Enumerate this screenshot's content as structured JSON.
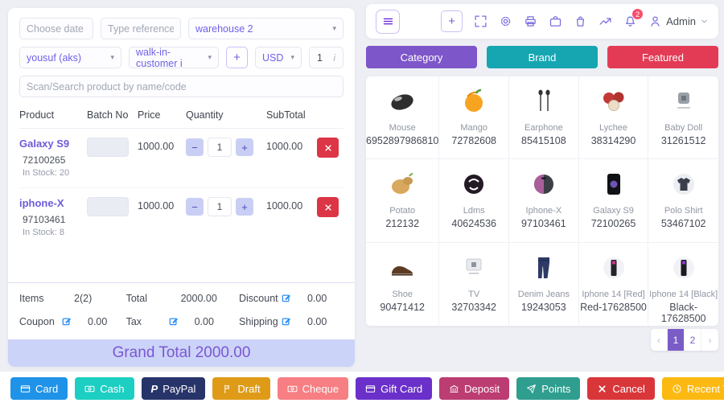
{
  "pos": {
    "date_placeholder": "Choose date",
    "reference_placeholder": "Type reference nu",
    "warehouse": "warehouse 2",
    "biller": "yousuf (aks)",
    "customer": "walk-in-customer i",
    "add_customer_label": "+",
    "currency": "USD",
    "exchange_rate": "1",
    "search_placeholder": "Scan/Search product by name/code",
    "table_headers": [
      "Product",
      "Batch No",
      "Price",
      "Quantity",
      "SubTotal"
    ],
    "cart": [
      {
        "name": "Galaxy S9",
        "code": "72100265",
        "stock": "In Stock: 20",
        "price": "1000.00",
        "qty": "1",
        "subtotal": "1000.00"
      },
      {
        "name": "iphone-X",
        "code": "97103461",
        "stock": "In Stock: 8",
        "price": "1000.00",
        "qty": "1",
        "subtotal": "1000.00"
      }
    ],
    "summary": [
      [
        {
          "label": "Items",
          "value": "2(2)",
          "editable": false
        },
        {
          "label": "Total",
          "value": "2000.00",
          "editable": false
        },
        {
          "label": "Discount",
          "value": "0.00",
          "editable": true
        }
      ],
      [
        {
          "label": "Coupon",
          "value": "0.00",
          "editable": true
        },
        {
          "label": "Tax",
          "value": "0.00",
          "editable": true
        },
        {
          "label": "Shipping",
          "value": "0.00",
          "editable": true
        }
      ]
    ],
    "grand_total": "Grand Total 2000.00",
    "edit_icon_color": "#2b8ef5",
    "accent_color": "#6f61e8"
  },
  "header": {
    "icons": [
      "maximize-icon",
      "gear-icon",
      "printer-icon",
      "briefcase-icon",
      "shopping-bag-icon",
      "trending-up-icon"
    ],
    "notification_count": "2",
    "user_label": "Admin"
  },
  "filters": [
    {
      "label": "Category",
      "color": "#7d56c9"
    },
    {
      "label": "Brand",
      "color": "#16a6b2"
    },
    {
      "label": "Featured",
      "color": "#e33b55"
    }
  ],
  "products": [
    {
      "name": "Mouse",
      "code": "6952897986810",
      "image": "mouse"
    },
    {
      "name": "Mango",
      "code": "72782608",
      "image": "mango"
    },
    {
      "name": "Earphone",
      "code": "85415108",
      "image": "earphone"
    },
    {
      "name": "Lychee",
      "code": "38314290",
      "image": "lychee"
    },
    {
      "name": "Baby Doll",
      "code": "31261512",
      "image": "baby-doll"
    },
    {
      "name": "Potato",
      "code": "212132",
      "image": "potato"
    },
    {
      "name": "Ldms",
      "code": "40624536",
      "image": "lion-logo"
    },
    {
      "name": "Iphone-X",
      "code": "97103461",
      "image": "iphone-x"
    },
    {
      "name": "Galaxy S9",
      "code": "72100265",
      "image": "galaxy-s9"
    },
    {
      "name": "Polo Shirt",
      "code": "53467102",
      "image": "polo-shirt"
    },
    {
      "name": "Shoe",
      "code": "90471412",
      "image": "shoe"
    },
    {
      "name": "TV",
      "code": "32703342",
      "image": "tv"
    },
    {
      "name": "Denim Jeans",
      "code": "19243053",
      "image": "denim-jeans"
    },
    {
      "name": "Iphone 14 [Red]",
      "code": "Red-17628500",
      "image": "iphone-14-red"
    },
    {
      "name": "Iphone 14 [Black]",
      "code": "Black-17628500",
      "image": "iphone-14-black"
    }
  ],
  "pagination": {
    "prev": "‹",
    "next": "›",
    "pages": [
      {
        "label": "1",
        "active": true
      },
      {
        "label": "2",
        "active": false
      }
    ]
  },
  "payments": [
    {
      "label": "Card",
      "color": "#1f93e8",
      "icon": "credit-card-icon"
    },
    {
      "label": "Cash",
      "color": "#1ccfc2",
      "icon": "money-icon"
    },
    {
      "label": "PayPal",
      "color": "#27346a",
      "icon": "paypal-icon"
    },
    {
      "label": "Draft",
      "color": "#df9b18",
      "icon": "flag-icon"
    },
    {
      "label": "Cheque",
      "color": "#f77e82",
      "icon": "money-icon"
    },
    {
      "label": "Gift Card",
      "color": "#6a30c9",
      "icon": "credit-card-icon"
    },
    {
      "label": "Deposit",
      "color": "#bb3d72",
      "icon": "bank-icon"
    },
    {
      "label": "Points",
      "color": "#2f9e8f",
      "icon": "rocket-icon"
    },
    {
      "label": "Cancel",
      "color": "#d9363a",
      "icon": "cancel-x-icon"
    },
    {
      "label": "Recent Transaction",
      "color": "#fcb912",
      "icon": "clock-icon"
    }
  ]
}
